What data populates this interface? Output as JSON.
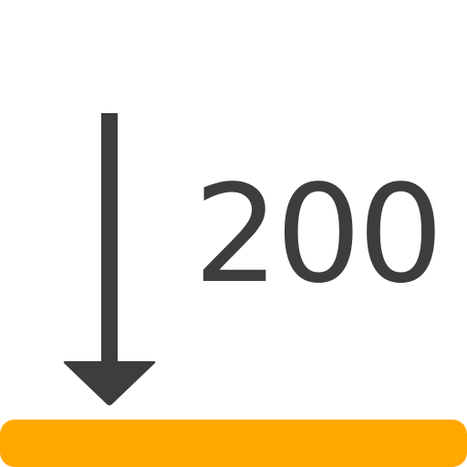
{
  "icon": {
    "name": "arrow-down-to-line-icon",
    "arrow_color": "#3d3d3d",
    "bar_color": "#ffa800"
  },
  "value_text": "200"
}
